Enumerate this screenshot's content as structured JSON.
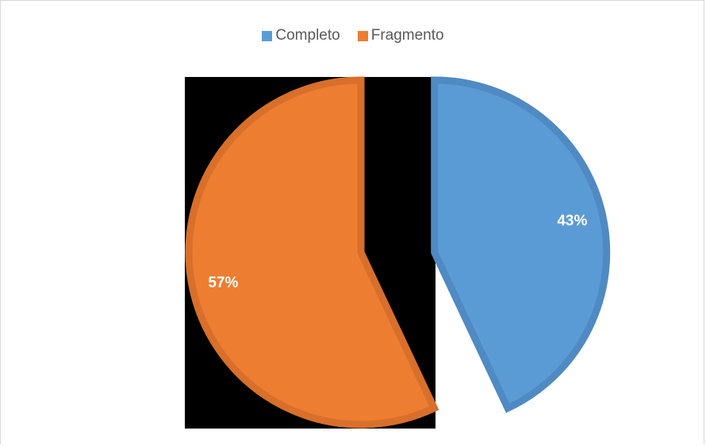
{
  "chart_data": {
    "type": "pie",
    "title": "",
    "legend_position": "top",
    "series": [
      {
        "slices": [
          {
            "label": "Completo",
            "value": 43,
            "display": "43%",
            "color": "#5B9BD5",
            "edge": "#4F8AC2",
            "exploded": true
          },
          {
            "label": "Fragmento",
            "value": 57,
            "display": "57%",
            "color": "#ED7D31",
            "edge": "#D86F2A",
            "exploded": false
          }
        ]
      }
    ]
  }
}
